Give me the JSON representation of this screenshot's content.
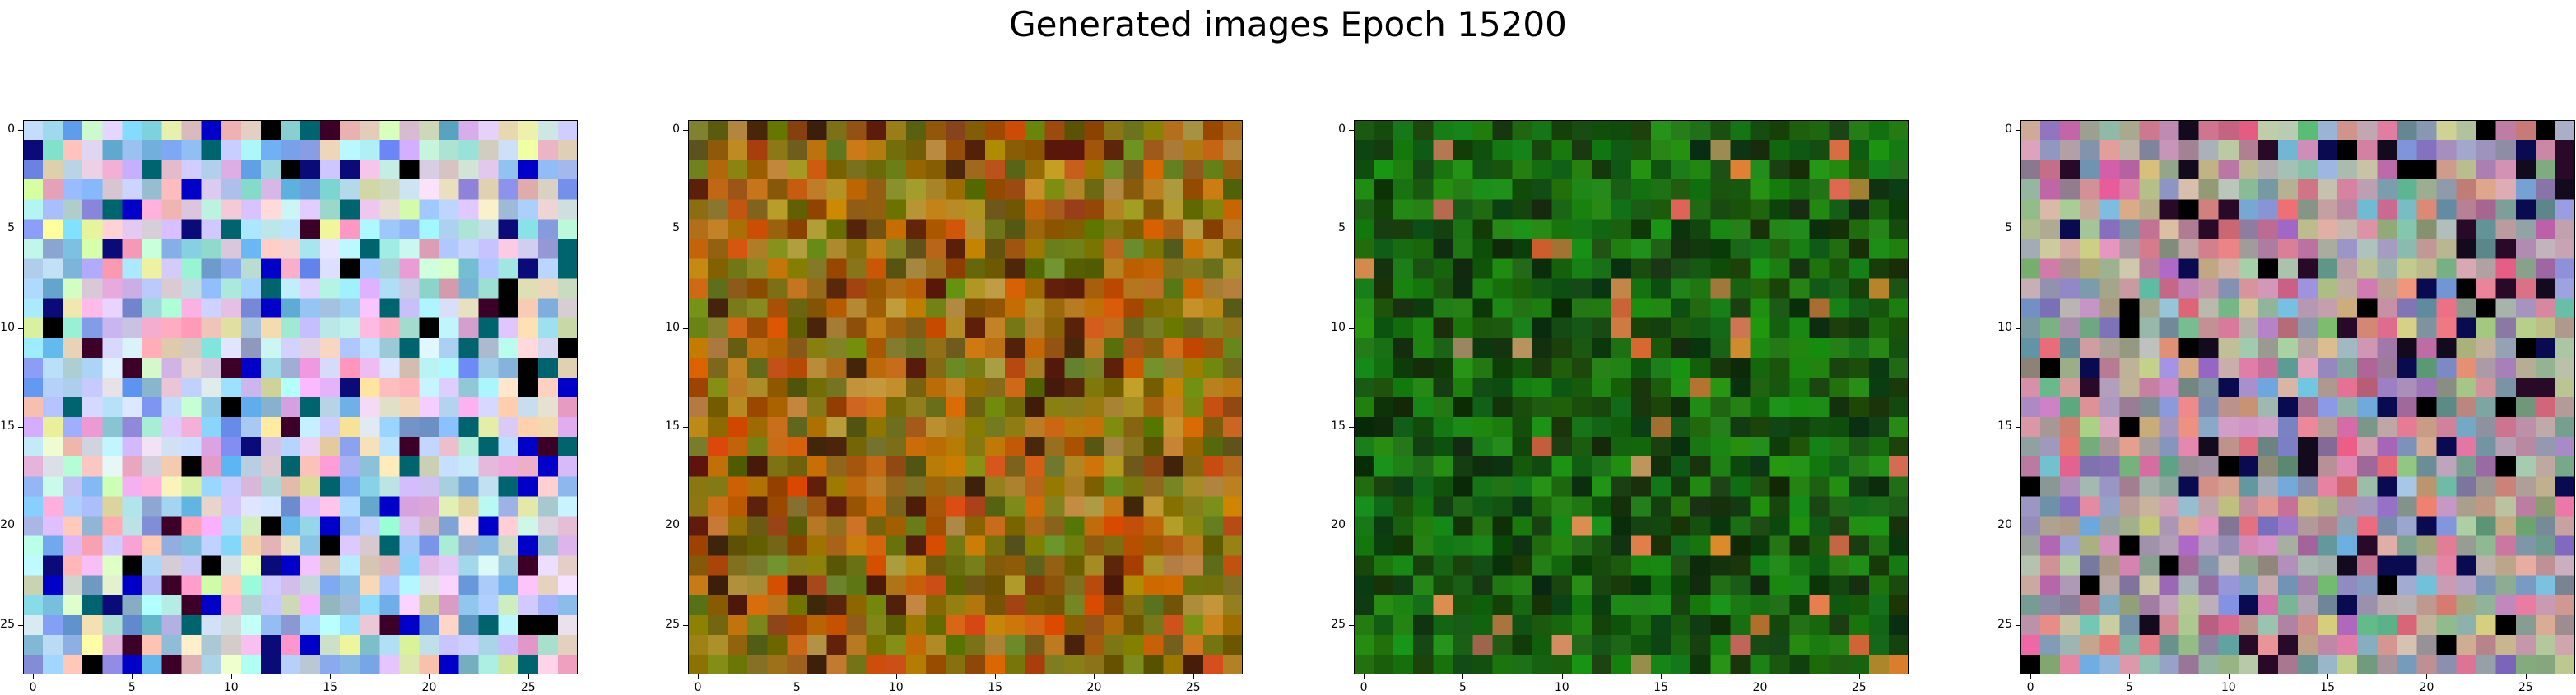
{
  "figure": {
    "suptitle": "Generated images Epoch 15200"
  },
  "chart_data": [
    {
      "type": "heatmap",
      "panel": 1,
      "style": "pastel_noise",
      "xlim": [
        0,
        27
      ],
      "ylim": [
        0,
        27
      ],
      "xticks": [
        "0",
        "5",
        "10",
        "15",
        "20",
        "25"
      ],
      "yticks": [
        "0",
        "5",
        "10",
        "15",
        "20",
        "25"
      ],
      "grid_size": 28
    },
    {
      "type": "heatmap",
      "panel": 2,
      "style": "orange_olive",
      "xlim": [
        0,
        27
      ],
      "ylim": [
        0,
        27
      ],
      "xticks": [
        "0",
        "5",
        "10",
        "15",
        "20",
        "25"
      ],
      "yticks": [
        "0",
        "5",
        "10",
        "15",
        "20",
        "25"
      ],
      "grid_size": 28
    },
    {
      "type": "heatmap",
      "panel": 3,
      "style": "green",
      "xlim": [
        0,
        27
      ],
      "ylim": [
        0,
        27
      ],
      "xticks": [
        "0",
        "5",
        "10",
        "15",
        "20",
        "25"
      ],
      "yticks": [
        "0",
        "5",
        "10",
        "15",
        "20",
        "25"
      ],
      "grid_size": 28
    },
    {
      "type": "heatmap",
      "panel": 4,
      "style": "muted_noise",
      "xlim": [
        0,
        27
      ],
      "ylim": [
        0,
        27
      ],
      "xticks": [
        "0",
        "5",
        "10",
        "15",
        "20",
        "25"
      ],
      "yticks": [
        "0",
        "5",
        "10",
        "15",
        "20",
        "25"
      ],
      "grid_size": 28
    }
  ]
}
